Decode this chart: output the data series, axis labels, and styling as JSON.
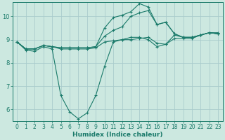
{
  "xlabel": "Humidex (Indice chaleur)",
  "background_color": "#cce8e0",
  "grid_color": "#aacccc",
  "line_color": "#1a7a6a",
  "xlim": [
    -0.5,
    23.5
  ],
  "ylim": [
    5.5,
    10.6
  ],
  "yticks": [
    6,
    7,
    8,
    9,
    10
  ],
  "xticks": [
    0,
    1,
    2,
    3,
    4,
    5,
    6,
    7,
    8,
    9,
    10,
    11,
    12,
    13,
    14,
    15,
    16,
    17,
    18,
    19,
    20,
    21,
    22,
    23
  ],
  "series": [
    {
      "x": [
        0,
        1,
        2,
        3,
        4,
        5,
        6,
        7,
        8,
        9,
        10,
        11,
        12,
        13,
        14,
        15,
        16,
        17,
        18,
        19,
        20,
        21,
        22,
        23
      ],
      "y": [
        8.9,
        8.55,
        8.5,
        8.7,
        8.6,
        6.6,
        5.9,
        5.6,
        5.85,
        6.6,
        7.85,
        8.9,
        9.0,
        9.1,
        9.1,
        9.0,
        8.7,
        8.8,
        9.2,
        9.1,
        9.1,
        9.2,
        9.3,
        9.3
      ]
    },
    {
      "x": [
        0,
        1,
        2,
        3,
        4,
        5,
        6,
        7,
        8,
        9,
        10,
        11,
        12,
        13,
        14,
        15,
        16,
        17,
        18,
        19,
        20,
        21,
        22,
        23
      ],
      "y": [
        8.9,
        8.6,
        8.6,
        8.75,
        8.7,
        8.6,
        8.6,
        8.6,
        8.6,
        8.65,
        8.9,
        8.95,
        9.0,
        9.0,
        9.05,
        9.1,
        8.85,
        8.8,
        9.05,
        9.05,
        9.05,
        9.2,
        9.3,
        9.25
      ]
    },
    {
      "x": [
        0,
        1,
        2,
        3,
        4,
        5,
        6,
        7,
        8,
        9,
        10,
        11,
        12,
        13,
        14,
        15,
        16,
        17,
        18,
        19,
        20,
        21,
        22,
        23
      ],
      "y": [
        8.9,
        8.6,
        8.6,
        8.75,
        8.7,
        8.65,
        8.65,
        8.65,
        8.65,
        8.7,
        9.15,
        9.4,
        9.55,
        10.0,
        10.15,
        10.25,
        9.65,
        9.75,
        9.25,
        9.1,
        9.1,
        9.2,
        9.3,
        9.25
      ]
    },
    {
      "x": [
        0,
        1,
        2,
        3,
        4,
        5,
        6,
        7,
        8,
        9,
        10,
        11,
        12,
        13,
        14,
        15,
        16,
        17,
        18,
        19,
        20,
        21,
        22,
        23
      ],
      "y": [
        8.9,
        8.6,
        8.6,
        8.75,
        8.7,
        8.65,
        8.65,
        8.65,
        8.65,
        8.7,
        9.5,
        9.95,
        10.05,
        10.2,
        10.55,
        10.4,
        9.65,
        9.75,
        9.25,
        9.1,
        9.1,
        9.2,
        9.3,
        9.25
      ]
    }
  ]
}
